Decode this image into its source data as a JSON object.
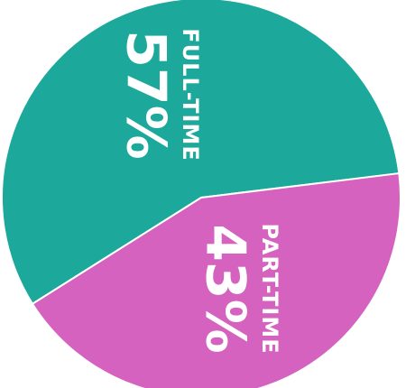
{
  "chart_data": {
    "type": "pie",
    "labels": [
      "FULL-TIME",
      "PART-TIME"
    ],
    "values": [
      57,
      43
    ],
    "value_labels": [
      "57%",
      "43%"
    ],
    "colors": [
      "#1ca99b",
      "#d562bf"
    ]
  }
}
